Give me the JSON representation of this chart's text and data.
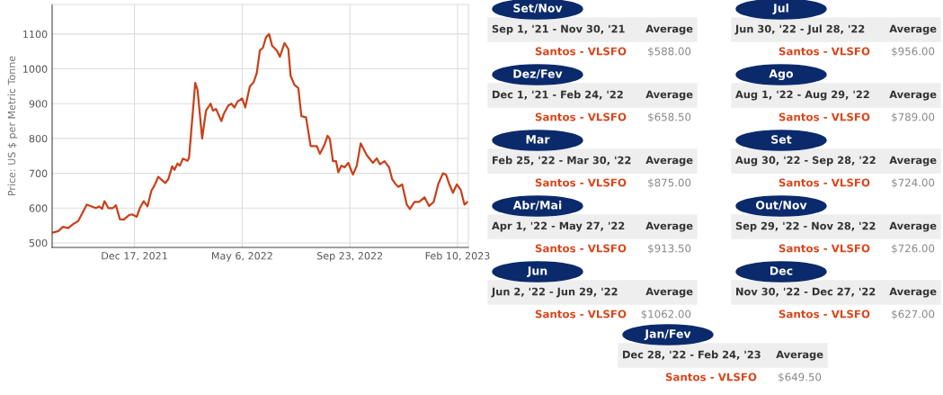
{
  "chart_data": [
    {
      "type": "line",
      "ylabel": "Price: US $ per Metric Tonne",
      "xlim": [
        "2021-09-01",
        "2023-02-24"
      ],
      "ylim": [
        487,
        1185
      ],
      "xticks": [
        {
          "value": "2021-12-17",
          "label": "Dec 17, 2021"
        },
        {
          "value": "2022-05-06",
          "label": "May 6, 2022"
        },
        {
          "value": "2022-09-23",
          "label": "Sep 23, 2022"
        },
        {
          "value": "2023-02-10",
          "label": "Feb 10, 2023"
        }
      ],
      "yticks": [
        500,
        600,
        700,
        800,
        900,
        1000,
        1100
      ],
      "grid": true,
      "line_style": "solid",
      "series": [
        {
          "color": "#c8401a",
          "x": [
            "2021-09-01",
            "2021-09-09",
            "2021-09-15",
            "2021-09-22",
            "2021-09-29",
            "2021-10-05",
            "2021-10-16",
            "2021-10-28",
            "2021-11-01",
            "2021-11-05",
            "2021-11-08",
            "2021-11-13",
            "2021-11-19",
            "2021-11-23",
            "2021-11-28",
            "2021-12-03",
            "2021-12-10",
            "2021-12-14",
            "2021-12-20",
            "2021-12-24",
            "2021-12-29",
            "2022-01-03",
            "2022-01-08",
            "2022-01-12",
            "2022-01-17",
            "2022-01-22",
            "2022-01-26",
            "2022-01-30",
            "2022-02-04",
            "2022-02-07",
            "2022-02-11",
            "2022-02-14",
            "2022-02-18",
            "2022-02-24",
            "2022-02-26",
            "2022-03-06",
            "2022-03-09",
            "2022-03-15",
            "2022-03-20",
            "2022-03-26",
            "2022-03-29",
            "2022-04-02",
            "2022-04-09",
            "2022-04-12",
            "2022-04-18",
            "2022-04-22",
            "2022-04-26",
            "2022-04-30",
            "2022-05-06",
            "2022-05-10",
            "2022-05-16",
            "2022-05-21",
            "2022-05-25",
            "2022-05-29",
            "2022-06-02",
            "2022-06-06",
            "2022-06-10",
            "2022-06-14",
            "2022-06-20",
            "2022-06-24",
            "2022-06-30",
            "2022-07-05",
            "2022-07-08",
            "2022-07-13",
            "2022-07-18",
            "2022-07-22",
            "2022-07-28",
            "2022-08-03",
            "2022-08-11",
            "2022-08-15",
            "2022-08-21",
            "2022-08-25",
            "2022-08-28",
            "2022-09-01",
            "2022-09-05",
            "2022-09-08",
            "2022-09-12",
            "2022-09-16",
            "2022-09-21",
            "2022-09-27",
            "2022-10-02",
            "2022-10-07",
            "2022-10-15",
            "2022-10-23",
            "2022-10-28",
            "2022-11-01",
            "2022-11-07",
            "2022-11-13",
            "2022-11-17",
            "2022-11-21",
            "2022-11-25",
            "2022-11-30",
            "2022-12-06",
            "2022-12-10",
            "2022-12-16",
            "2022-12-22",
            "2022-12-29",
            "2023-01-04",
            "2023-01-10",
            "2023-01-16",
            "2023-01-22",
            "2023-01-26",
            "2023-01-30",
            "2023-02-04",
            "2023-02-09",
            "2023-02-14",
            "2023-02-19",
            "2023-02-23"
          ],
          "values": [
            529,
            534,
            546,
            543,
            555,
            563,
            610,
            600,
            605,
            598,
            620,
            600,
            600,
            608,
            568,
            567,
            580,
            582,
            575,
            600,
            620,
            605,
            650,
            665,
            690,
            680,
            672,
            683,
            720,
            710,
            728,
            722,
            742,
            736,
            745,
            960,
            940,
            800,
            880,
            900,
            880,
            885,
            850,
            870,
            895,
            900,
            889,
            906,
            915,
            889,
            950,
            962,
            988,
            1053,
            1061,
            1091,
            1100,
            1066,
            1053,
            1035,
            1074,
            1057,
            980,
            954,
            945,
            864,
            861,
            778,
            778,
            756,
            782,
            808,
            799,
            735,
            735,
            703,
            722,
            717,
            730,
            696,
            722,
            786,
            752,
            730,
            743,
            726,
            735,
            717,
            683,
            670,
            661,
            668,
            610,
            597,
            618,
            618,
            631,
            606,
            618,
            670,
            700,
            696,
            670,
            644,
            668,
            653,
            610,
            618
          ]
        }
      ]
    },
    {
      "type": "other",
      "ylabel": "Average",
      "annotations": [
        "Set/Nov",
        "Dez/Fev",
        "Mar",
        "Abr/Mai",
        "Jun",
        "Jul",
        "Ago",
        "Set",
        "Out/Nov",
        "Dec",
        "Jan/Fev"
      ],
      "categories": [
        "Sep 1, '21 - Nov 30, '21",
        "Dec 1, '21 - Feb 24, '22",
        "Feb 25, '22 - Mar 30, '22",
        "Apr 1, '22 - May 27, '22",
        "Jun 2, '22 - Jun 29, '22",
        "Jun 30, '22 - Jul 28, '22",
        "Aug 1, '22 - Aug 29, '22",
        "Aug 30, '22 - Sep 28, '22",
        "Sep 29, '22 - Nov 28, '22",
        "Nov 30, '22 - Dec 27, '22",
        "Dec 28, '22 - Feb 24, '23"
      ],
      "series": [
        {
          "name": "Santos - VLSFO",
          "color": "#d9461b",
          "values": [
            588.0,
            658.5,
            875.0,
            913.5,
            1062.0,
            956.0,
            789.0,
            724.0,
            726.0,
            627.0,
            649.5
          ],
          "value_labels": [
            "$588.00",
            "$658.50",
            "$875.00",
            "$913.50",
            "$1062.00",
            "$956.00",
            "$789.00",
            "$724.00",
            "$726.00",
            "$627.00",
            "$649.50"
          ]
        }
      ]
    }
  ]
}
